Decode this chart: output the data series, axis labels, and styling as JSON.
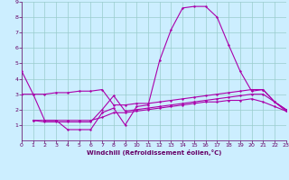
{
  "background_color": "#cceeff",
  "grid_color": "#99cccc",
  "line_color": "#aa00aa",
  "xlabel": "Windchill (Refroidissement éolien,°C)",
  "xlabel_color": "#660066",
  "tick_color": "#660066",
  "spine_color": "#660066",
  "xlim": [
    0,
    23
  ],
  "ylim": [
    0,
    9
  ],
  "xticks": [
    0,
    1,
    2,
    3,
    4,
    5,
    6,
    7,
    8,
    9,
    10,
    11,
    12,
    13,
    14,
    15,
    16,
    17,
    18,
    19,
    20,
    21,
    22,
    23
  ],
  "yticks": [
    1,
    2,
    3,
    4,
    5,
    6,
    7,
    8,
    9
  ],
  "series1_x": [
    0,
    1,
    2,
    3,
    4,
    5,
    6,
    7,
    8,
    9,
    10,
    11,
    12,
    13,
    14,
    15,
    16,
    17,
    18,
    19,
    20,
    21,
    22,
    23
  ],
  "series1_y": [
    4.5,
    3.0,
    1.3,
    1.3,
    0.7,
    0.7,
    0.7,
    1.8,
    2.1,
    1.0,
    2.2,
    2.3,
    5.2,
    7.2,
    8.6,
    8.7,
    8.7,
    8.0,
    6.2,
    4.5,
    3.2,
    3.3,
    2.5,
    2.0
  ],
  "series2_x": [
    0,
    1,
    2,
    3,
    4,
    5,
    6,
    7,
    8,
    9,
    10,
    11,
    12,
    13,
    14,
    15,
    16,
    17,
    18,
    19,
    20,
    21,
    22,
    23
  ],
  "series2_y": [
    3.0,
    3.0,
    3.0,
    3.1,
    3.1,
    3.2,
    3.2,
    3.3,
    2.3,
    2.3,
    2.4,
    2.4,
    2.5,
    2.6,
    2.7,
    2.8,
    2.9,
    3.0,
    3.1,
    3.2,
    3.3,
    3.3,
    2.5,
    2.0
  ],
  "series3_x": [
    1,
    2,
    3,
    4,
    5,
    6,
    7,
    8,
    9,
    10,
    11,
    12,
    13,
    14,
    15,
    16,
    17,
    18,
    19,
    20,
    21,
    22,
    23
  ],
  "series3_y": [
    1.3,
    1.3,
    1.3,
    1.3,
    1.3,
    1.3,
    1.5,
    1.8,
    1.8,
    1.9,
    2.0,
    2.1,
    2.2,
    2.3,
    2.4,
    2.5,
    2.5,
    2.6,
    2.6,
    2.7,
    2.5,
    2.2,
    1.9
  ],
  "series4_x": [
    1,
    2,
    3,
    4,
    5,
    6,
    7,
    8,
    9,
    10,
    11,
    12,
    13,
    14,
    15,
    16,
    17,
    18,
    19,
    20,
    21,
    22,
    23
  ],
  "series4_y": [
    1.3,
    1.2,
    1.2,
    1.2,
    1.2,
    1.2,
    2.0,
    2.9,
    1.9,
    2.0,
    2.1,
    2.2,
    2.3,
    2.4,
    2.5,
    2.6,
    2.7,
    2.8,
    2.9,
    3.0,
    3.0,
    2.5,
    1.9
  ]
}
